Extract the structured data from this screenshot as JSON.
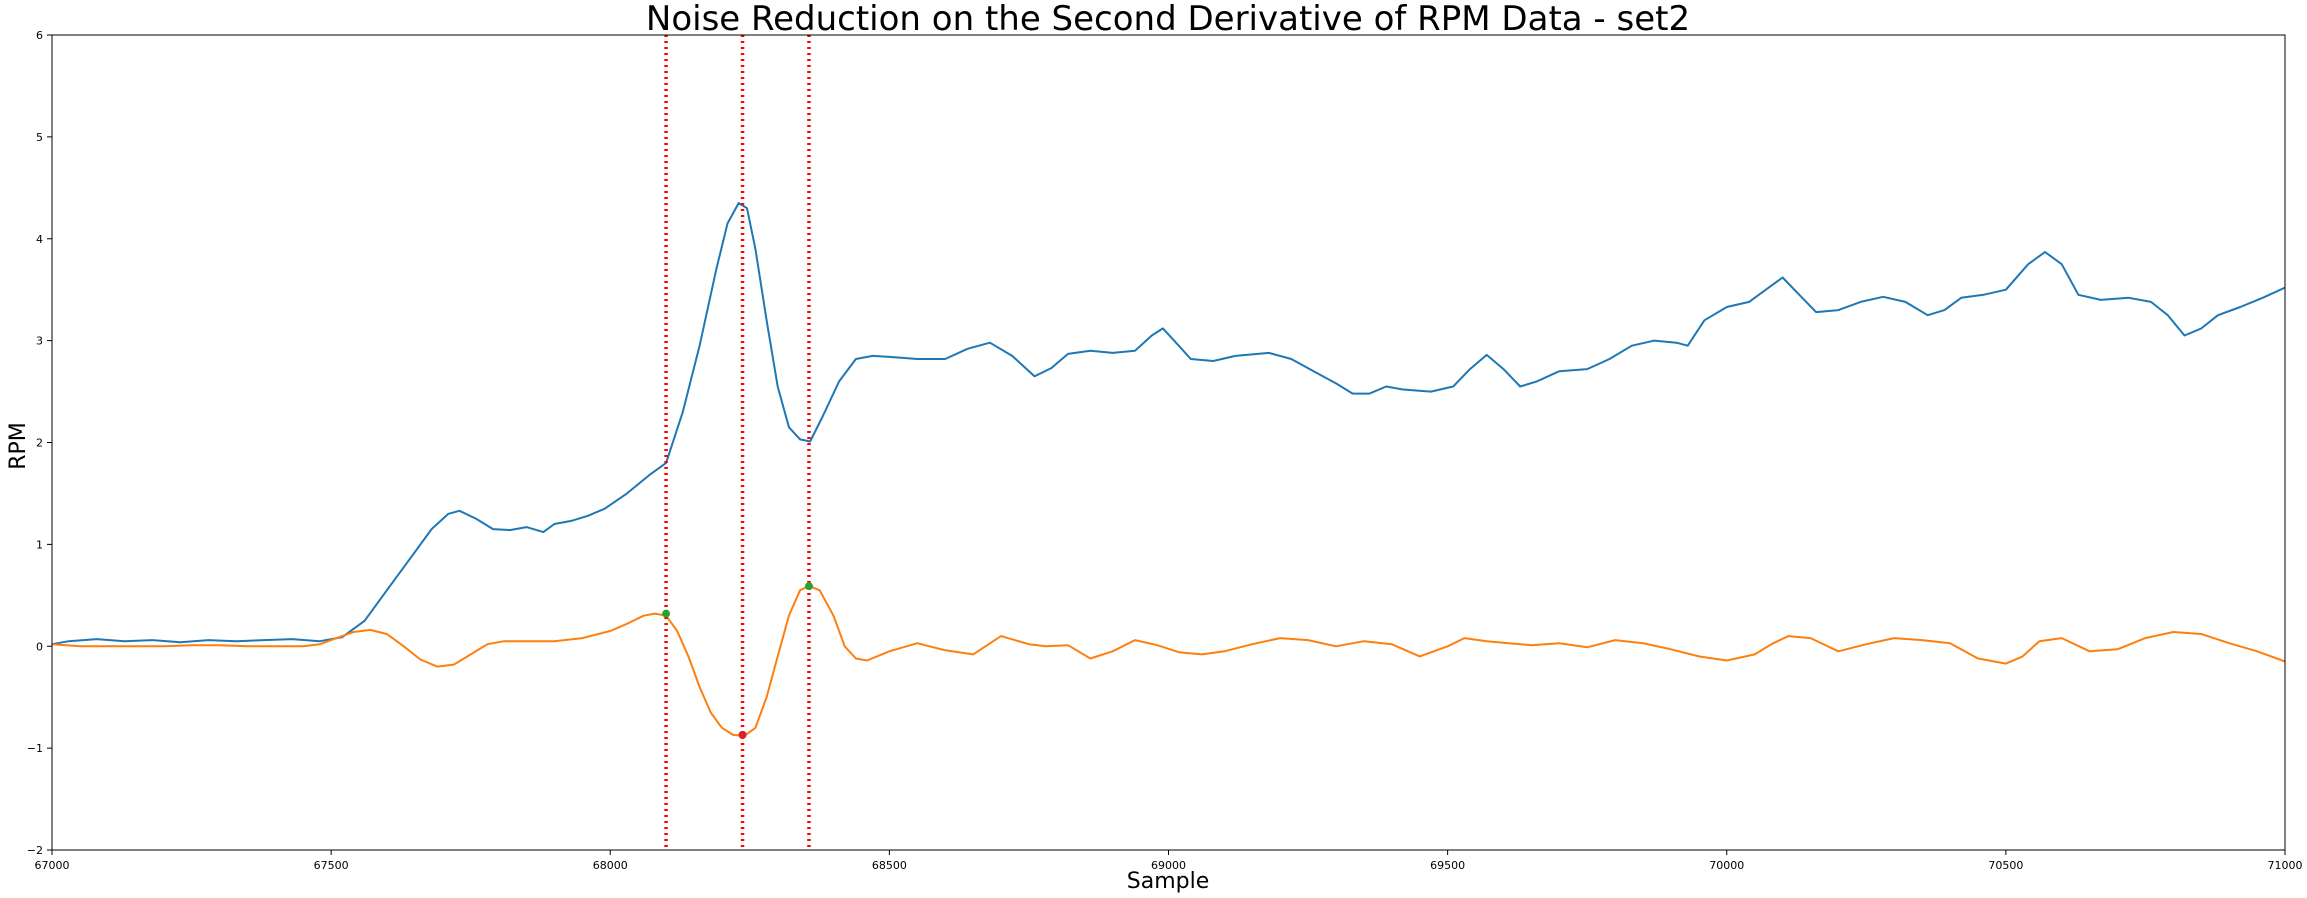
{
  "chart_data": {
    "type": "line",
    "title": "Noise Reduction on the Second Derivative of RPM Data - set2",
    "xlabel": "Sample",
    "ylabel": "RPM",
    "xlim": [
      67000,
      71000
    ],
    "ylim": [
      -2,
      6
    ],
    "xticks": [
      67000,
      67500,
      68000,
      68500,
      69000,
      69500,
      70000,
      70500,
      71000
    ],
    "yticks": [
      -2,
      -1,
      0,
      1,
      2,
      3,
      4,
      5,
      6
    ],
    "xtick_labels": [
      "67000",
      "67500",
      "68000",
      "68500",
      "69000",
      "69500",
      "70000",
      "70500",
      "71000"
    ],
    "ytick_labels": [
      "−2",
      "−1",
      "0",
      "1",
      "2",
      "3",
      "4",
      "5",
      "6"
    ],
    "grid": false,
    "series": [
      {
        "color": "#1f77b4",
        "x": [
          67000,
          67030,
          67080,
          67130,
          67180,
          67230,
          67280,
          67330,
          67380,
          67430,
          67480,
          67520,
          67560,
          67600,
          67640,
          67680,
          67710,
          67730,
          67760,
          67790,
          67820,
          67850,
          67880,
          67900,
          67930,
          67960,
          67990,
          68030,
          68070,
          68100,
          68130,
          68160,
          68190,
          68210,
          68230,
          68245,
          68260,
          68280,
          68300,
          68320,
          68340,
          68358,
          68380,
          68410,
          68440,
          68470,
          68500,
          68550,
          68600,
          68640,
          68680,
          68720,
          68760,
          68790,
          68820,
          68860,
          68900,
          68940,
          68970,
          68990,
          69010,
          69040,
          69080,
          69120,
          69180,
          69220,
          69260,
          69300,
          69330,
          69360,
          69390,
          69420,
          69470,
          69510,
          69540,
          69570,
          69600,
          69630,
          69660,
          69700,
          69750,
          69790,
          69830,
          69870,
          69910,
          69930,
          69960,
          70000,
          70040,
          70070,
          70100,
          70130,
          70160,
          70200,
          70240,
          70280,
          70320,
          70360,
          70390,
          70420,
          70460,
          70500,
          70540,
          70570,
          70600,
          70630,
          70670,
          70720,
          70760,
          70790,
          70820,
          70850,
          70880,
          70920,
          70960,
          71000
        ],
        "values": [
          0.02,
          0.05,
          0.07,
          0.05,
          0.06,
          0.04,
          0.06,
          0.05,
          0.06,
          0.07,
          0.05,
          0.09,
          0.25,
          0.55,
          0.85,
          1.15,
          1.3,
          1.33,
          1.25,
          1.15,
          1.14,
          1.17,
          1.12,
          1.2,
          1.23,
          1.28,
          1.35,
          1.5,
          1.68,
          1.8,
          2.3,
          2.95,
          3.7,
          4.15,
          4.35,
          4.3,
          3.9,
          3.2,
          2.55,
          2.15,
          2.03,
          2.01,
          2.25,
          2.6,
          2.82,
          2.85,
          2.84,
          2.82,
          2.82,
          2.92,
          2.98,
          2.85,
          2.65,
          2.73,
          2.87,
          2.9,
          2.88,
          2.9,
          3.05,
          3.12,
          3.0,
          2.82,
          2.8,
          2.85,
          2.88,
          2.82,
          2.7,
          2.58,
          2.48,
          2.48,
          2.55,
          2.52,
          2.5,
          2.55,
          2.72,
          2.86,
          2.72,
          2.55,
          2.6,
          2.7,
          2.72,
          2.82,
          2.95,
          3.0,
          2.98,
          2.95,
          3.2,
          3.33,
          3.38,
          3.5,
          3.62,
          3.45,
          3.28,
          3.3,
          3.38,
          3.43,
          3.38,
          3.25,
          3.3,
          3.42,
          3.45,
          3.5,
          3.75,
          3.87,
          3.75,
          3.45,
          3.4,
          3.42,
          3.38,
          3.25,
          3.05,
          3.12,
          3.25,
          3.33,
          3.42,
          3.52
        ]
      },
      {
        "color": "#ff7f0e",
        "x": [
          67000,
          67050,
          67100,
          67150,
          67200,
          67250,
          67300,
          67350,
          67400,
          67450,
          67480,
          67510,
          67540,
          67570,
          67600,
          67630,
          67660,
          67690,
          67720,
          67750,
          67780,
          67810,
          67840,
          67870,
          67900,
          67950,
          68000,
          68030,
          68060,
          68080,
          68100,
          68120,
          68140,
          68160,
          68180,
          68200,
          68220,
          68240,
          68260,
          68280,
          68300,
          68320,
          68340,
          68356,
          68375,
          68400,
          68420,
          68440,
          68460,
          68500,
          68550,
          68600,
          68650,
          68700,
          68750,
          68780,
          68820,
          68860,
          68900,
          68940,
          68980,
          69020,
          69060,
          69100,
          69150,
          69200,
          69250,
          69300,
          69350,
          69400,
          69450,
          69500,
          69530,
          69570,
          69610,
          69650,
          69700,
          69750,
          69800,
          69850,
          69900,
          69950,
          70000,
          70050,
          70080,
          70110,
          70150,
          70200,
          70250,
          70300,
          70350,
          70400,
          70450,
          70500,
          70530,
          70560,
          70600,
          70650,
          70700,
          70750,
          70800,
          70850,
          70900,
          70950,
          71000
        ],
        "values": [
          0.02,
          0.0,
          0.0,
          0.0,
          0.0,
          0.01,
          0.01,
          0.0,
          0.0,
          0.0,
          0.02,
          0.08,
          0.14,
          0.16,
          0.12,
          0.0,
          -0.13,
          -0.2,
          -0.18,
          -0.08,
          0.02,
          0.05,
          0.05,
          0.05,
          0.05,
          0.08,
          0.15,
          0.22,
          0.3,
          0.32,
          0.3,
          0.15,
          -0.1,
          -0.4,
          -0.65,
          -0.8,
          -0.87,
          -0.88,
          -0.8,
          -0.5,
          -0.1,
          0.3,
          0.55,
          0.59,
          0.55,
          0.3,
          0.0,
          -0.12,
          -0.14,
          -0.05,
          0.03,
          -0.04,
          -0.08,
          0.1,
          0.02,
          0.0,
          0.01,
          -0.12,
          -0.05,
          0.06,
          0.01,
          -0.06,
          -0.08,
          -0.05,
          0.02,
          0.08,
          0.06,
          0.0,
          0.05,
          0.02,
          -0.1,
          0.0,
          0.08,
          0.05,
          0.03,
          0.01,
          0.03,
          -0.01,
          0.06,
          0.03,
          -0.03,
          -0.1,
          -0.14,
          -0.08,
          0.02,
          0.1,
          0.08,
          -0.05,
          0.02,
          0.08,
          0.06,
          0.03,
          -0.12,
          -0.17,
          -0.1,
          0.05,
          0.08,
          -0.05,
          -0.03,
          0.08,
          0.14,
          0.12,
          0.03,
          -0.05,
          -0.15
        ]
      }
    ],
    "vlines": [
      {
        "x": 68100,
        "color": "#ff0000",
        "style": "dotted"
      },
      {
        "x": 68237,
        "color": "#ff0000",
        "style": "dotted"
      },
      {
        "x": 68356,
        "color": "#ff0000",
        "style": "dotted"
      }
    ],
    "markers": [
      {
        "x": 68100,
        "y": 0.32,
        "color": "#2ca02c"
      },
      {
        "x": 68237,
        "y": -0.87,
        "color": "#d62728"
      },
      {
        "x": 68356,
        "y": 0.59,
        "color": "#2ca02c"
      }
    ]
  }
}
